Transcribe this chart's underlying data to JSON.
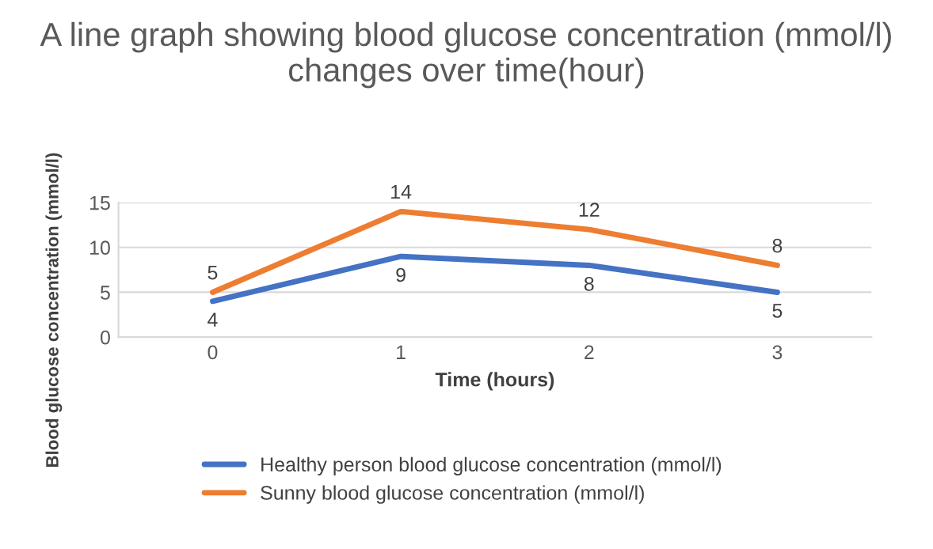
{
  "chart_data": {
    "type": "line",
    "title": "A line graph showing blood glucose concentration (mmol/l) changes over time(hour)",
    "xlabel": "Time (hours)",
    "ylabel": "Blood glucose concentration (mmol/l)",
    "categories": [
      "0",
      "1",
      "2",
      "3"
    ],
    "series": [
      {
        "name": "Healthy person blood glucose concentration (mmol/l)",
        "color": "#4472c4",
        "values": [
          4,
          9,
          8,
          5
        ]
      },
      {
        "name": "Sunny blood glucose concentration (mmol/l)",
        "color": "#ed7d31",
        "values": [
          5,
          14,
          12,
          8
        ]
      }
    ],
    "ylim": [
      0,
      15
    ],
    "yticks": [
      0,
      5,
      10,
      15
    ],
    "grid": "y",
    "legend": "bottom",
    "data_labels": true,
    "marker": "none",
    "line_style": "solid"
  }
}
